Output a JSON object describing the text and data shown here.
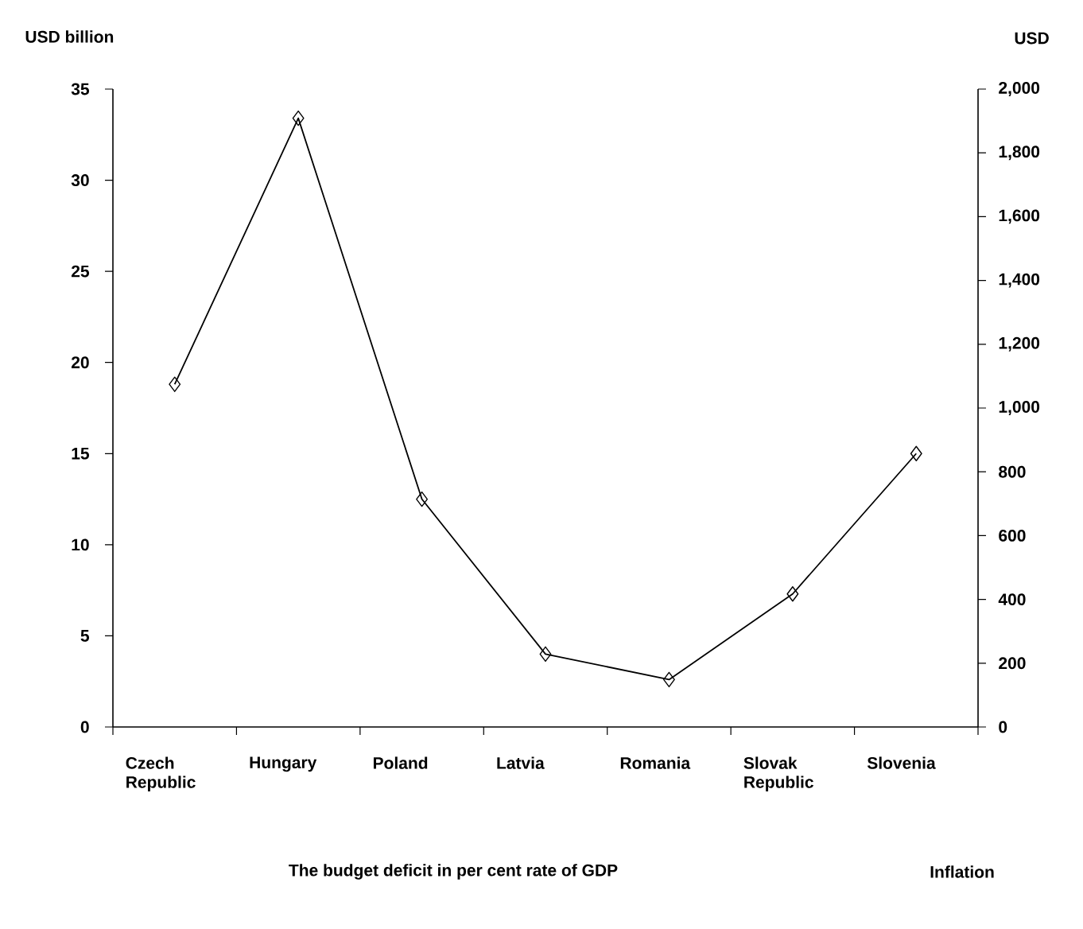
{
  "chart_data": {
    "type": "line",
    "ylabel": "USD billion",
    "y2label": "USD",
    "categories": [
      "Czech Republic",
      "Hungary",
      "Poland",
      "Latvia",
      "Romania",
      "Slovak Republic",
      "Slovenia"
    ],
    "series": [
      {
        "color": "#000000",
        "values": [
          18.8,
          33.4,
          12.5,
          4.0,
          2.6,
          7.3,
          15.0
        ]
      }
    ],
    "ylim": [
      0,
      35
    ],
    "yticks": [
      0,
      5,
      10,
      15,
      20,
      25,
      30,
      35
    ],
    "y2lim": [
      0,
      2000
    ],
    "y2ticks": [
      0,
      200,
      400,
      600,
      800,
      {
        "value": 1000,
        "label": "1,000"
      },
      {
        "value": 1200,
        "label": "1,200"
      },
      {
        "value": 1400,
        "label": "1,400"
      },
      {
        "value": 1600,
        "label": "1,600"
      },
      {
        "value": 1800,
        "label": "1,800"
      },
      {
        "value": 2000,
        "label": "2,000"
      }
    ],
    "marker": "diamond",
    "line_style": "solid",
    "annotations": [
      "The budget deficit in per cent rate of GDP",
      "Inflation"
    ]
  }
}
